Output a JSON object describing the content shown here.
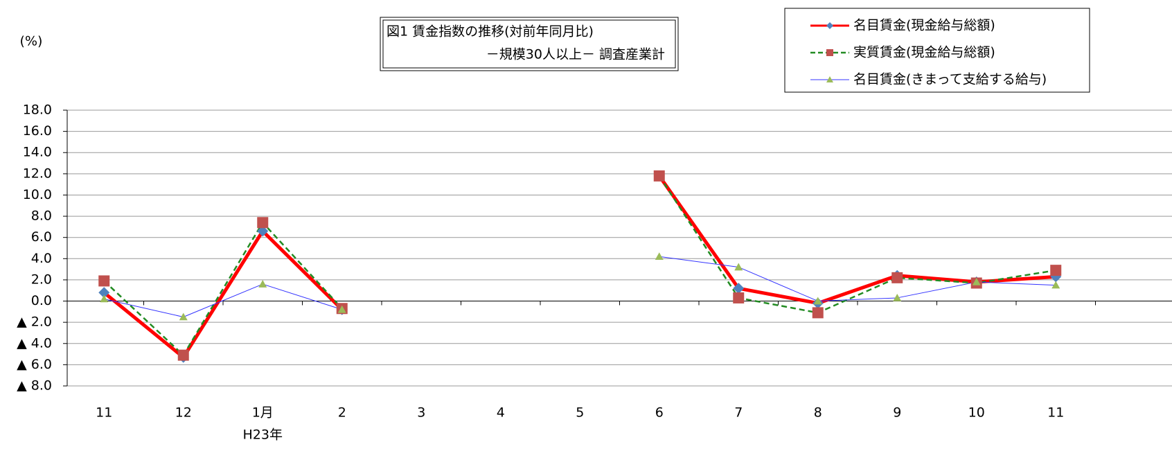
{
  "chart_data": {
    "type": "line",
    "title": "図1 賃金指数の推移(対前年同月比)",
    "subtitle": "－規模30人以上－ 調査産業計",
    "y_label": "(%)",
    "categories": [
      "11",
      "12",
      "1月",
      "2",
      "3",
      "4",
      "5",
      "6",
      "7",
      "8",
      "9",
      "10",
      "11"
    ],
    "annotations": [
      {
        "text": "H23年",
        "x": "1月"
      }
    ],
    "series": [
      {
        "name": "名目賃金(現金給与総額)",
        "color": "#ff0000",
        "marker_color": "#4f81bd",
        "marker": "diamond",
        "dash": false,
        "width": 5,
        "values": [
          0.8,
          -5.3,
          6.6,
          -0.8,
          null,
          null,
          null,
          11.8,
          1.2,
          -0.2,
          2.4,
          1.8,
          2.3
        ]
      },
      {
        "name": "実質賃金(現金給与総額)",
        "color": "#228b22",
        "marker_color": "#c0504d",
        "marker": "square",
        "dash": true,
        "width": 2.5,
        "values": [
          1.9,
          -5.1,
          7.4,
          -0.7,
          null,
          null,
          null,
          11.8,
          0.3,
          -1.1,
          2.2,
          1.7,
          2.9
        ]
      },
      {
        "name": "名目賃金(きまって支給する給与)",
        "color": "#3333ff",
        "marker_color": "#9bbb59",
        "marker": "triangle",
        "dash": false,
        "width": 1,
        "values": [
          0.2,
          -1.5,
          1.6,
          -0.8,
          null,
          null,
          null,
          4.2,
          3.2,
          0.0,
          0.3,
          1.8,
          1.5
        ]
      }
    ],
    "ylim": [
      -8,
      18
    ],
    "yticks": [
      {
        "value": -8,
        "label": "▲ 8.0"
      },
      {
        "value": -6,
        "label": "▲ 6.0"
      },
      {
        "value": -4,
        "label": "▲ 4.0"
      },
      {
        "value": -2,
        "label": "▲ 2.0"
      },
      {
        "value": 0,
        "label": "0.0"
      },
      {
        "value": 2,
        "label": "2.0"
      },
      {
        "value": 4,
        "label": "4.0"
      },
      {
        "value": 6,
        "label": "6.0"
      },
      {
        "value": 8,
        "label": "8.0"
      },
      {
        "value": 10,
        "label": "10.0"
      },
      {
        "value": 12,
        "label": "12.0"
      },
      {
        "value": 14,
        "label": "14.0"
      },
      {
        "value": 16,
        "label": "16.0"
      },
      {
        "value": 18,
        "label": "18.0"
      }
    ],
    "grid": true,
    "legend": "top-right"
  }
}
